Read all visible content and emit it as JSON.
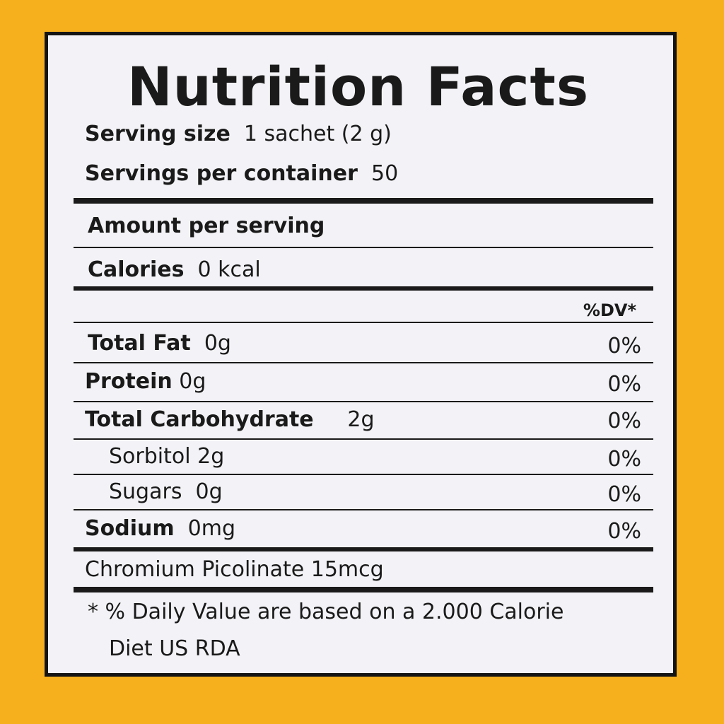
{
  "title": "Nutrition Facts",
  "serving_size": {
    "label": "Serving size",
    "value": "1 sachet (2 g)"
  },
  "servings_per_container": {
    "label": "Servings per container",
    "value": "50"
  },
  "amount_per_serving": "Amount per serving",
  "calories": {
    "label": "Calories",
    "value": "0 kcal"
  },
  "dv_header": "%DV*",
  "nutrients": [
    {
      "label": "Total Fat",
      "amount": "0g",
      "dv": "0%"
    },
    {
      "label": "Protein",
      "amount": "0g",
      "dv": "0%"
    },
    {
      "label": "Total Carbohydrate",
      "amount": "2g",
      "dv": "0%"
    },
    {
      "label": "Sorbitol",
      "amount": "2g",
      "dv": "0%"
    },
    {
      "label": "Sugars",
      "amount": "0g",
      "dv": "0%"
    },
    {
      "label": "Sodium",
      "amount": "0mg",
      "dv": "0%"
    }
  ],
  "extra": "Chromium Picolinate 15mcg",
  "footnote_line1": "* % Daily Value are based on a 2.000 Calorie",
  "footnote_line2": "Diet US RDA",
  "colors": {
    "background": "#f6b01e",
    "label": "#f3f3f7",
    "ink": "#1a1a1a"
  }
}
